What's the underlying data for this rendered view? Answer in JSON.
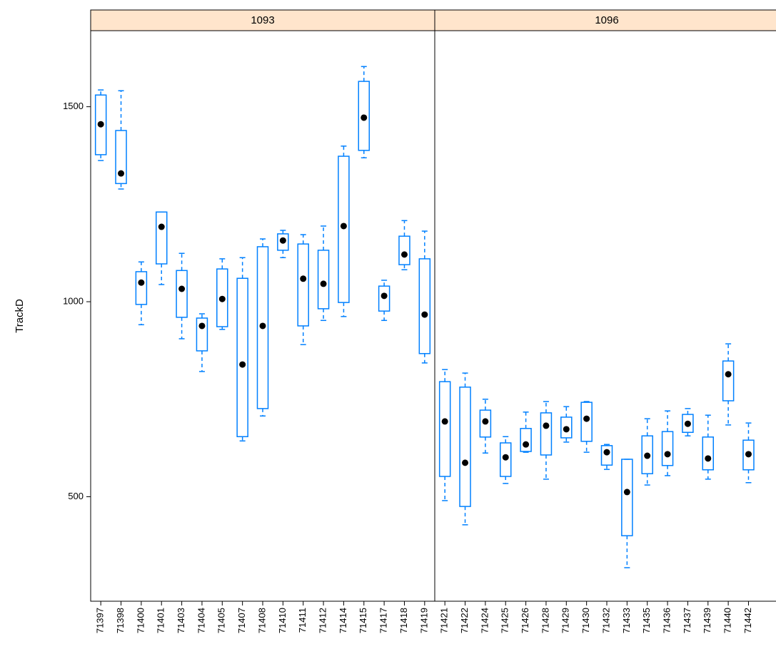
{
  "chart_data": [
    {
      "type": "box",
      "title": "1093",
      "ylabel": "TrackD",
      "color": "#0080ff",
      "ylim": [
        232,
        1695
      ],
      "yticks": [
        500,
        1000,
        1500
      ],
      "categories": [
        "71397",
        "71398",
        "71400",
        "71401",
        "71403",
        "71404",
        "71405",
        "71407",
        "71408",
        "71410",
        "71411",
        "71412",
        "71414",
        "71415",
        "71417",
        "71418",
        "71419"
      ],
      "low": [
        1362,
        1289,
        941,
        1044,
        905,
        821,
        929,
        643,
        707,
        1113,
        890,
        952,
        962,
        1369,
        952,
        1082,
        843
      ],
      "q1": [
        1377,
        1303,
        993,
        1097,
        960,
        874,
        936,
        654,
        726,
        1132,
        938,
        982,
        998,
        1388,
        976,
        1095,
        867
      ],
      "median": [
        1455,
        1329,
        1049,
        1192,
        1033,
        938,
        1007,
        839,
        938,
        1157,
        1059,
        1046,
        1194,
        1472,
        1015,
        1121,
        967
      ],
      "q3": [
        1530,
        1439,
        1077,
        1230,
        1080,
        958,
        1084,
        1060,
        1141,
        1174,
        1148,
        1132,
        1373,
        1565,
        1040,
        1168,
        1110
      ],
      "high": [
        1543,
        1541,
        1102,
        1230,
        1124,
        969,
        1110,
        1113,
        1161,
        1183,
        1172,
        1194,
        1399,
        1603,
        1055,
        1208,
        1181
      ]
    },
    {
      "type": "box",
      "title": "1096",
      "color": "#0080ff",
      "ylim": [
        232,
        1695
      ],
      "categories": [
        "71421",
        "71422",
        "71424",
        "71425",
        "71426",
        "71428",
        "71429",
        "71430",
        "71432",
        "71433",
        "71435",
        "71436",
        "71437",
        "71439",
        "71440",
        "71442"
      ],
      "low": [
        490,
        428,
        612,
        534,
        614,
        545,
        640,
        614,
        570,
        318,
        530,
        554,
        656,
        545,
        684,
        536
      ],
      "q1": [
        552,
        475,
        653,
        552,
        616,
        607,
        651,
        642,
        581,
        400,
        559,
        580,
        665,
        569,
        746,
        569
      ],
      "median": [
        693,
        587,
        693,
        601,
        634,
        682,
        673,
        700,
        614,
        512,
        605,
        609,
        687,
        598,
        814,
        609
      ],
      "q3": [
        795,
        781,
        722,
        638,
        675,
        715,
        704,
        742,
        631,
        596,
        656,
        667,
        711,
        653,
        848,
        645
      ],
      "high": [
        826,
        817,
        750,
        654,
        717,
        744,
        731,
        744,
        634,
        596,
        700,
        720,
        726,
        709,
        892,
        689
      ]
    }
  ]
}
